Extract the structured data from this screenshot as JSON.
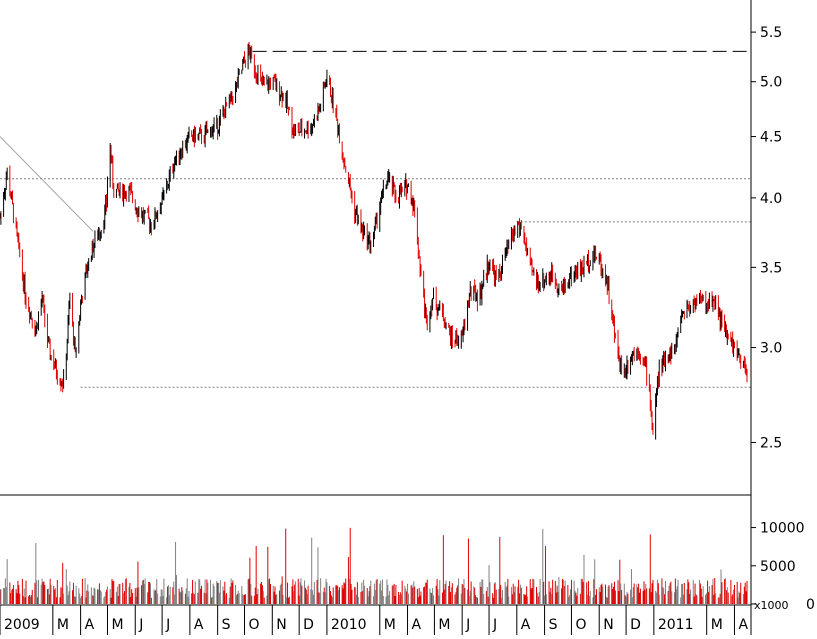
{
  "chart_data": {
    "type": "candlestick",
    "price_axis": {
      "scale": "log",
      "ylim": [
        2.26,
        5.85
      ],
      "tick_values": [
        2.5,
        3.0,
        3.5,
        4.0,
        4.5,
        5.0,
        5.5
      ],
      "tick_labels": [
        "2.5",
        "3.0",
        "3.5",
        "4.0",
        "4.5",
        "5.0",
        "5.5"
      ]
    },
    "volume_axis": {
      "ylim": [
        0,
        14000
      ],
      "tick_values": [
        0,
        5000,
        10000
      ],
      "tick_labels": [
        "0",
        "5000",
        "10000"
      ],
      "multiplier_label": "x1000"
    },
    "time_axis": {
      "start": "2009-01-01",
      "end": "2011-04-15",
      "labels": [
        {
          "date": "2009-01-01",
          "text": "2009"
        },
        {
          "date": "2009-03-01",
          "text": "M"
        },
        {
          "date": "2009-04-01",
          "text": "A"
        },
        {
          "date": "2009-05-01",
          "text": "M"
        },
        {
          "date": "2009-06-01",
          "text": "J"
        },
        {
          "date": "2009-07-01",
          "text": "J"
        },
        {
          "date": "2009-08-01",
          "text": "A"
        },
        {
          "date": "2009-09-01",
          "text": "S"
        },
        {
          "date": "2009-10-01",
          "text": "O"
        },
        {
          "date": "2009-11-01",
          "text": "N"
        },
        {
          "date": "2009-12-01",
          "text": "D"
        },
        {
          "date": "2010-01-01",
          "text": "2010"
        },
        {
          "date": "2010-03-01",
          "text": "M"
        },
        {
          "date": "2010-04-01",
          "text": "A"
        },
        {
          "date": "2010-05-01",
          "text": "M"
        },
        {
          "date": "2010-06-01",
          "text": "J"
        },
        {
          "date": "2010-07-01",
          "text": "J"
        },
        {
          "date": "2010-08-01",
          "text": "A"
        },
        {
          "date": "2010-09-01",
          "text": "S"
        },
        {
          "date": "2010-10-01",
          "text": "O"
        },
        {
          "date": "2010-11-01",
          "text": "N"
        },
        {
          "date": "2010-12-01",
          "text": "D"
        },
        {
          "date": "2011-01-01",
          "text": "2011"
        },
        {
          "date": "2011-03-01",
          "text": "M"
        },
        {
          "date": "2011-04-01",
          "text": "A"
        }
      ]
    },
    "price_path": [
      [
        "2009-01-01",
        3.85
      ],
      [
        "2009-01-09",
        4.2
      ],
      [
        "2009-01-20",
        3.7
      ],
      [
        "2009-01-30",
        3.3
      ],
      [
        "2009-02-10",
        3.1
      ],
      [
        "2009-02-17",
        3.3
      ],
      [
        "2009-02-24",
        3.0
      ],
      [
        "2009-03-06",
        2.85
      ],
      [
        "2009-03-14",
        2.8
      ],
      [
        "2009-03-20",
        3.3
      ],
      [
        "2009-03-26",
        2.95
      ],
      [
        "2009-04-02",
        3.3
      ],
      [
        "2009-04-12",
        3.6
      ],
      [
        "2009-04-25",
        3.8
      ],
      [
        "2009-04-30",
        3.95
      ],
      [
        "2009-05-03",
        4.5
      ],
      [
        "2009-05-08",
        4.05
      ],
      [
        "2009-05-25",
        4.05
      ],
      [
        "2009-06-05",
        3.9
      ],
      [
        "2009-06-20",
        3.8
      ],
      [
        "2009-07-05",
        4.05
      ],
      [
        "2009-07-15",
        4.3
      ],
      [
        "2009-08-01",
        4.5
      ],
      [
        "2009-08-15",
        4.5
      ],
      [
        "2009-09-01",
        4.6
      ],
      [
        "2009-09-20",
        4.9
      ],
      [
        "2009-10-01",
        5.2
      ],
      [
        "2009-10-06",
        5.3
      ],
      [
        "2009-10-14",
        5.1
      ],
      [
        "2009-10-22",
        4.95
      ],
      [
        "2009-11-01",
        5.0
      ],
      [
        "2009-11-15",
        4.85
      ],
      [
        "2009-11-25",
        4.55
      ],
      [
        "2009-12-05",
        4.55
      ],
      [
        "2009-12-15",
        4.6
      ],
      [
        "2009-12-24",
        4.75
      ],
      [
        "2010-01-01",
        5.05
      ],
      [
        "2010-01-08",
        4.8
      ],
      [
        "2010-01-20",
        4.3
      ],
      [
        "2010-02-01",
        3.9
      ],
      [
        "2010-02-10",
        3.75
      ],
      [
        "2010-02-20",
        3.65
      ],
      [
        "2010-03-01",
        3.95
      ],
      [
        "2010-03-10",
        4.15
      ],
      [
        "2010-03-20",
        4.0
      ],
      [
        "2010-04-01",
        4.1
      ],
      [
        "2010-04-08",
        3.95
      ],
      [
        "2010-04-15",
        3.5
      ],
      [
        "2010-04-22",
        3.15
      ],
      [
        "2010-04-29",
        3.3
      ],
      [
        "2010-05-10",
        3.2
      ],
      [
        "2010-05-20",
        3.05
      ],
      [
        "2010-06-01",
        3.05
      ],
      [
        "2010-06-10",
        3.35
      ],
      [
        "2010-06-20",
        3.3
      ],
      [
        "2010-07-01",
        3.55
      ],
      [
        "2010-07-10",
        3.4
      ],
      [
        "2010-07-20",
        3.6
      ],
      [
        "2010-08-01",
        3.8
      ],
      [
        "2010-08-08",
        3.75
      ],
      [
        "2010-08-15",
        3.5
      ],
      [
        "2010-08-25",
        3.4
      ],
      [
        "2010-09-10",
        3.45
      ],
      [
        "2010-09-20",
        3.35
      ],
      [
        "2010-10-01",
        3.45
      ],
      [
        "2010-10-15",
        3.5
      ],
      [
        "2010-10-25",
        3.6
      ],
      [
        "2010-11-01",
        3.55
      ],
      [
        "2010-11-10",
        3.4
      ],
      [
        "2010-11-20",
        3.0
      ],
      [
        "2010-11-28",
        2.85
      ],
      [
        "2010-12-05",
        2.95
      ],
      [
        "2010-12-15",
        3.0
      ],
      [
        "2010-12-25",
        2.85
      ],
      [
        "2010-12-31",
        2.55
      ],
      [
        "2011-01-06",
        2.85
      ],
      [
        "2011-01-15",
        2.95
      ],
      [
        "2011-01-25",
        3.0
      ],
      [
        "2011-02-01",
        3.2
      ],
      [
        "2011-02-10",
        3.25
      ],
      [
        "2011-02-20",
        3.3
      ],
      [
        "2011-03-01",
        3.25
      ],
      [
        "2011-03-10",
        3.3
      ],
      [
        "2011-03-20",
        3.1
      ],
      [
        "2011-04-01",
        3.0
      ],
      [
        "2011-04-08",
        2.9
      ],
      [
        "2011-04-15",
        2.87
      ]
    ],
    "reference_lines": [
      {
        "style": "dashed",
        "value": 5.3,
        "from": "2009-10-10",
        "to": "2011-04-15"
      },
      {
        "style": "dotted",
        "value": 4.15,
        "from": "2009-01-01",
        "to": "2011-04-15"
      },
      {
        "style": "dotted",
        "value": 3.82,
        "from": "2010-08-01",
        "to": "2011-04-15"
      },
      {
        "style": "dotted",
        "value": 2.78,
        "from": "2009-04-01",
        "to": "2011-04-15"
      }
    ],
    "trendline": {
      "from": [
        "2009-01-01",
        4.5
      ],
      "to": [
        "2009-04-15",
        3.75
      ]
    },
    "colors": {
      "down": "#e00000",
      "up": "#000000",
      "volume_up": "#808080",
      "volume_down": "#e00000",
      "grid": "#808080",
      "axis": "#000000"
    }
  }
}
